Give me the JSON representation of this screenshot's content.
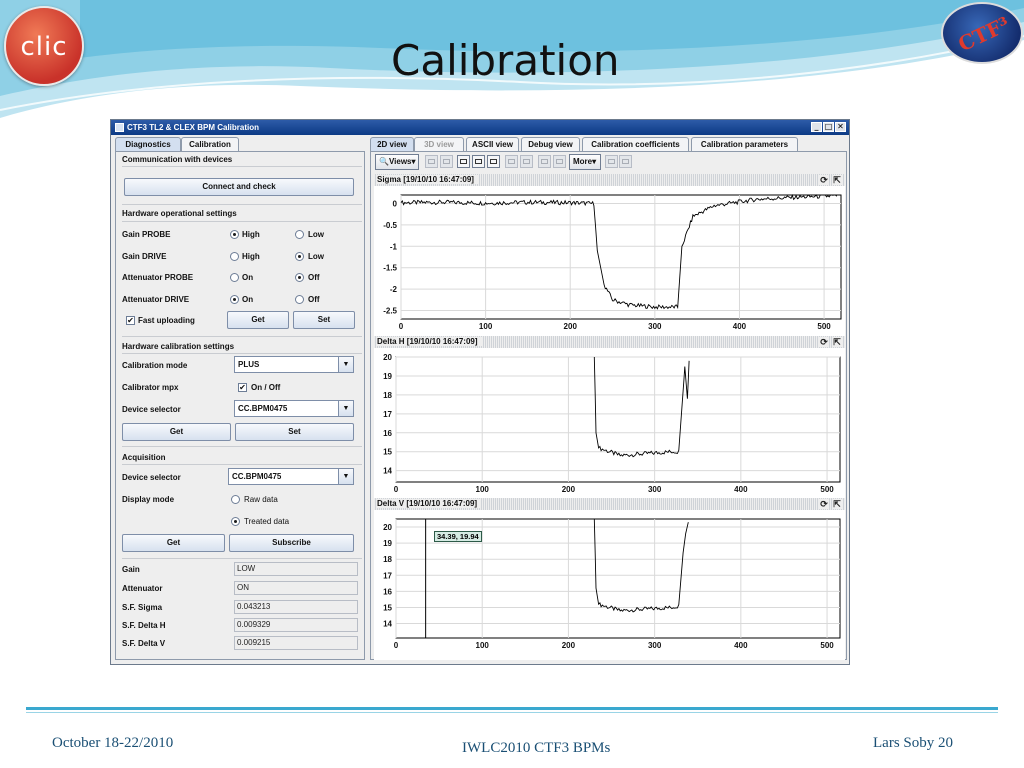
{
  "slide": {
    "title": "Calibration",
    "logo_left": {
      "text": "clic",
      "icon": "clic-logo"
    },
    "logo_right": {
      "text": "CTF³",
      "icon": "ctf3-logo"
    },
    "footer": {
      "date": "October  18-22/2010",
      "event": "IWLC2010   CTF3 BPMs",
      "author_page": "Lars Soby   20"
    },
    "colors": {
      "accent": "#3aa8cf",
      "footer_text": "#1a4f74",
      "title_bar": "#0c3a85"
    }
  },
  "window": {
    "title": "CTF3 TL2 & CLEX BPM Calibration",
    "controls": [
      "_",
      "□",
      "✕"
    ]
  },
  "left_panel": {
    "tabs": [
      "Diagnostics",
      "Calibration"
    ],
    "communication": {
      "header": "Communication with devices",
      "connect_button": "Connect and check"
    },
    "hardware_operational": {
      "header": "Hardware operational settings",
      "rows": [
        {
          "label": "Gain PROBE",
          "opt1": "High",
          "opt2": "Low",
          "selected": 1
        },
        {
          "label": "Gain DRIVE",
          "opt1": "High",
          "opt2": "Low",
          "selected": 2
        },
        {
          "label": "Attenuator PROBE",
          "opt1": "On",
          "opt2": "Off",
          "selected": 2
        },
        {
          "label": "Attenuator DRIVE",
          "opt1": "On",
          "opt2": "Off",
          "selected": 1
        }
      ],
      "fast_upload_label": "Fast uploading",
      "fast_upload_checked": true,
      "get_button": "Get",
      "set_button": "Set"
    },
    "hardware_calibration": {
      "header": "Hardware calibration settings",
      "mode_label": "Calibration mode",
      "mode_value": "PLUS",
      "mpx_label": "Calibrator mpx",
      "mpx_checkbox_label": "On / Off",
      "mpx_checked": true,
      "device_label": "Device selector",
      "device_value": "CC.BPM0475",
      "get_button": "Get",
      "set_button": "Set"
    },
    "acquisition": {
      "header": "Acquisition",
      "device_label": "Device selector",
      "device_value": "CC.BPM0475",
      "display_mode_label": "Display mode",
      "raw_label": "Raw data",
      "treated_label": "Treated data",
      "display_selected": "treated",
      "get_button": "Get",
      "subscribe_button": "Subscribe"
    },
    "readouts": [
      {
        "label": "Gain",
        "value": "LOW"
      },
      {
        "label": "Attenuator",
        "value": "ON"
      },
      {
        "label": "S.F. Sigma",
        "value": "0.043213"
      },
      {
        "label": "S.F. Delta H",
        "value": "0.009329"
      },
      {
        "label": "S.F. Delta V",
        "value": "0.009215"
      }
    ]
  },
  "right_panel": {
    "tabs": [
      "2D view",
      "3D view",
      "ASCII view",
      "Debug view",
      "Calibration coefficients",
      "Calibration parameters"
    ],
    "selected_tab": "2D view",
    "disabled_tab": "3D view",
    "toolbar": {
      "views_label": "Views",
      "more_label": "More"
    },
    "plots": [
      {
        "header": "Sigma  [19/10/10 16:47:09]"
      },
      {
        "header": "Delta H  [19/10/10 16:47:09]"
      },
      {
        "header": "Delta V  [19/10/10 16:47:09]",
        "tooltip": "34.39, 19.94"
      }
    ]
  },
  "chart_data": [
    {
      "type": "line",
      "title": "Sigma  [19/10/10 16:47:09]",
      "xlim": [
        0,
        520
      ],
      "ylim": [
        -2.7,
        0.2
      ],
      "x_ticks": [
        0,
        100,
        200,
        300,
        400,
        500
      ],
      "y_ticks": [
        0,
        -0.5,
        -1,
        -1.5,
        -2,
        -2.5
      ],
      "grid": true,
      "series": [
        {
          "points": [
            [
              0,
              0.02
            ],
            [
              50,
              0.03
            ],
            [
              100,
              0.01
            ],
            [
              150,
              0.03
            ],
            [
              200,
              0.02
            ],
            [
              228,
              0.0
            ],
            [
              232,
              -1.1
            ],
            [
              240,
              -1.9
            ],
            [
              250,
              -2.25
            ],
            [
              270,
              -2.37
            ],
            [
              300,
              -2.42
            ],
            [
              320,
              -2.42
            ],
            [
              327,
              -2.42
            ],
            [
              332,
              -1.0
            ],
            [
              345,
              -0.3
            ],
            [
              370,
              -0.05
            ],
            [
              420,
              0.1
            ],
            [
              470,
              0.15
            ],
            [
              515,
              0.18
            ]
          ]
        }
      ]
    },
    {
      "type": "line",
      "title": "Delta H  [19/10/10 16:47:09]",
      "xlim": [
        0,
        515
      ],
      "ylim": [
        13.4,
        20
      ],
      "x_ticks": [
        0,
        100,
        200,
        300,
        400,
        500
      ],
      "y_ticks": [
        20,
        19,
        18,
        17,
        16,
        15,
        14
      ],
      "grid": true,
      "series": [
        {
          "points": [
            [
              230,
              20.0
            ],
            [
              232,
              16.0
            ],
            [
              235,
              15.2
            ],
            [
              260,
              14.8
            ],
            [
              290,
              14.9
            ],
            [
              320,
              15.0
            ],
            [
              328,
              15.0
            ],
            [
              333,
              18.2
            ],
            [
              335,
              19.5
            ],
            [
              338,
              17.8
            ],
            [
              340,
              19.8
            ]
          ]
        }
      ]
    },
    {
      "type": "line",
      "title": "Delta V  [19/10/10 16:47:09]",
      "xlim": [
        0,
        515
      ],
      "ylim": [
        13.1,
        20.5
      ],
      "x_ticks": [
        0,
        100,
        200,
        300,
        400,
        500
      ],
      "y_ticks": [
        20,
        19,
        18,
        17,
        16,
        15,
        14
      ],
      "grid": true,
      "marker_x": 34.39,
      "series": [
        {
          "points": [
            [
              230,
              20.5
            ],
            [
              232,
              16.2
            ],
            [
              235,
              15.2
            ],
            [
              260,
              14.8
            ],
            [
              290,
              14.9
            ],
            [
              320,
              15.0
            ],
            [
              328,
              15.1
            ],
            [
              333,
              18.4
            ],
            [
              336,
              19.6
            ],
            [
              339,
              20.3
            ]
          ]
        }
      ]
    }
  ]
}
